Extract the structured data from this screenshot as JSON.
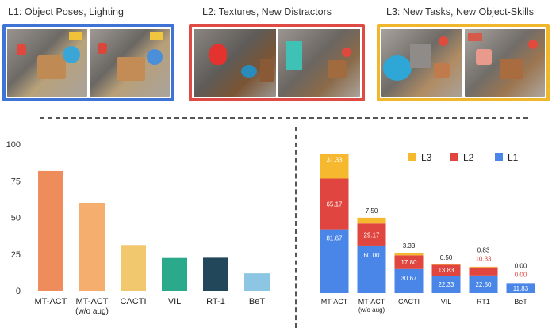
{
  "panels": [
    {
      "title": "L1: Object Poses, Lighting",
      "border_color": "#3f74d6"
    },
    {
      "title": "L2: Textures, New Distractors",
      "border_color": "#e04a45"
    },
    {
      "title": "L3: New Tasks, New Object-Skills",
      "border_color": "#f0b62c"
    }
  ],
  "chart_data": [
    {
      "type": "bar",
      "categories": [
        "MT-ACT",
        "MT-ACT (w/o aug)",
        "CACTI",
        "VIL",
        "RT-1",
        "BeT"
      ],
      "values": [
        81.67,
        60.0,
        30.67,
        22.33,
        22.5,
        11.83
      ],
      "colors": [
        "#ef8c5c",
        "#f5ae6e",
        "#f2c86e",
        "#2aaa8a",
        "#23475a",
        "#8cc6e2"
      ],
      "yticks": [
        0,
        25,
        50,
        75,
        100
      ],
      "ylim": [
        0,
        100
      ],
      "grid": false
    },
    {
      "type": "bar",
      "stacked": true,
      "categories": [
        "MT-ACT",
        "MT-ACT (w/o aug)",
        "CACTI",
        "VIL",
        "RT1",
        "BeT"
      ],
      "series": [
        {
          "name": "L1",
          "color": "#4a86e8",
          "values": [
            81.67,
            60.0,
            30.67,
            22.33,
            22.5,
            11.83
          ]
        },
        {
          "name": "L2",
          "color": "#e0463f",
          "values": [
            65.17,
            29.17,
            17.8,
            13.83,
            10.33,
            0.0
          ]
        },
        {
          "name": "L3",
          "color": "#f5b82e",
          "values": [
            31.33,
            7.5,
            3.33,
            0.5,
            0.83,
            0.0
          ]
        }
      ],
      "legend_order": [
        "L3",
        "L2",
        "L1"
      ],
      "legend_position": "top-right",
      "label_colors": {
        "L1": "#ffffff",
        "L2": "#ffffff",
        "L3": "#ffffff"
      },
      "grid": false
    }
  ]
}
